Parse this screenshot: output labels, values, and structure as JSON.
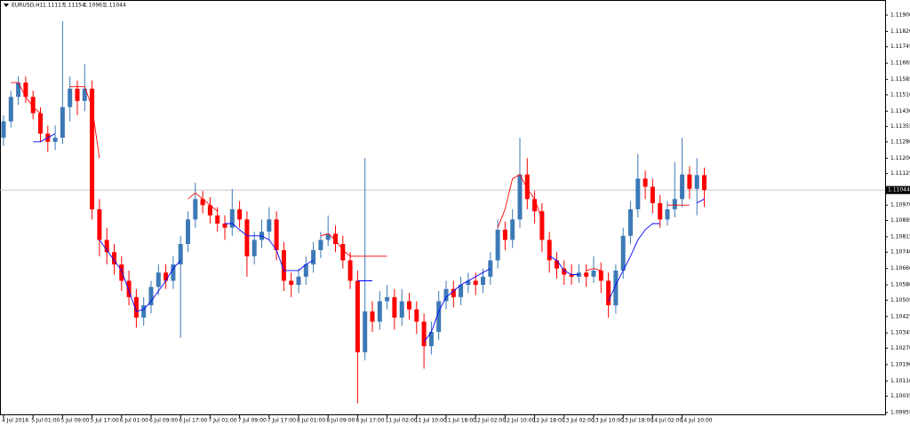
{
  "chart_data": {
    "type": "candlestick",
    "symbol": "EURUSD,H1",
    "categories": [
      "4 Jul 2016",
      null,
      null,
      null,
      "5 Jul 01:00",
      null,
      null,
      null,
      "5 Jul 09:00",
      null,
      null,
      null,
      "5 Jul 17:00",
      null,
      null,
      null,
      "6 Jul 01:00",
      null,
      null,
      null,
      "6 Jul 09:00",
      null,
      null,
      null,
      "6 Jul 17:00",
      null,
      null,
      null,
      "7 Jul 01:00",
      null,
      null,
      null,
      "7 Jul 09:00",
      null,
      null,
      null,
      "7 Jul 17:00",
      null,
      null,
      null,
      "8 Jul 01:00",
      null,
      null,
      null,
      "8 Jul 09:00",
      null,
      null,
      null,
      "8 Jul 17:00",
      null,
      null,
      null,
      "11 Jul 02:00",
      null,
      null,
      null,
      "11 Jul 10:00",
      null,
      null,
      null,
      "11 Jul 18:00",
      null,
      null,
      null,
      "12 Jul 02:00",
      null,
      null,
      null,
      "12 Jul 10:00",
      null,
      null,
      null,
      "12 Jul 18:00",
      null,
      null,
      null,
      "13 Jul 02:00",
      null,
      null,
      null,
      "13 Jul 10:00",
      null,
      null,
      null,
      "13 Jul 18:00",
      null,
      null,
      null,
      "14 Jul 02:00",
      null,
      null,
      null,
      "14 Jul 10:00",
      null,
      null,
      null
    ],
    "ohlc": [
      [
        1.113,
        1.1141,
        1.1126,
        1.1138
      ],
      [
        1.1138,
        1.1153,
        1.1135,
        1.115
      ],
      [
        1.115,
        1.116,
        1.1146,
        1.1157
      ],
      [
        1.1157,
        1.116,
        1.1147,
        1.115
      ],
      [
        1.115,
        1.1153,
        1.1139,
        1.1142
      ],
      [
        1.1142,
        1.1145,
        1.1128,
        1.1132
      ],
      [
        1.1132,
        1.1136,
        1.1123,
        1.1128
      ],
      [
        1.1128,
        1.1136,
        1.1124,
        1.113
      ],
      [
        1.113,
        1.1187,
        1.1127,
        1.1145
      ],
      [
        1.1145,
        1.116,
        1.1138,
        1.1154
      ],
      [
        1.1154,
        1.1158,
        1.1141,
        1.1148
      ],
      [
        1.1148,
        1.1166,
        1.1143,
        1.1154
      ],
      [
        1.1154,
        1.1158,
        1.109,
        1.1095
      ],
      [
        1.1095,
        1.11,
        1.1072,
        1.108
      ],
      [
        1.108,
        1.1086,
        1.1068,
        1.1074
      ],
      [
        1.1074,
        1.1078,
        1.1063,
        1.1068
      ],
      [
        1.1068,
        1.1072,
        1.1055,
        1.106
      ],
      [
        1.106,
        1.1065,
        1.1048,
        1.1052
      ],
      [
        1.1052,
        1.1056,
        1.1037,
        1.1042
      ],
      [
        1.1042,
        1.1052,
        1.1038,
        1.1048
      ],
      [
        1.1048,
        1.106,
        1.1044,
        1.1057
      ],
      [
        1.1057,
        1.1068,
        1.1053,
        1.1064
      ],
      [
        1.1064,
        1.1068,
        1.1056,
        1.106
      ],
      [
        1.106,
        1.1072,
        1.1056,
        1.1068
      ],
      [
        1.1068,
        1.1082,
        1.1032,
        1.1078
      ],
      [
        1.1078,
        1.1094,
        1.1074,
        1.109
      ],
      [
        1.109,
        1.1108,
        1.1086,
        1.11
      ],
      [
        1.11,
        1.1104,
        1.1093,
        1.1097
      ],
      [
        1.1097,
        1.1101,
        1.1088,
        1.1092
      ],
      [
        1.1092,
        1.1096,
        1.1084,
        1.1088
      ],
      [
        1.1088,
        1.1092,
        1.108,
        1.1086
      ],
      [
        1.1086,
        1.1105,
        1.1082,
        1.1095
      ],
      [
        1.1095,
        1.1099,
        1.1086,
        1.109
      ],
      [
        1.109,
        1.1094,
        1.1062,
        1.1072
      ],
      [
        1.1072,
        1.1084,
        1.1068,
        1.108
      ],
      [
        1.108,
        1.109,
        1.1076,
        1.1084
      ],
      [
        1.1084,
        1.1096,
        1.108,
        1.109
      ],
      [
        1.109,
        1.1094,
        1.107,
        1.1075
      ],
      [
        1.1075,
        1.1079,
        1.1055,
        1.106
      ],
      [
        1.106,
        1.1064,
        1.1052,
        1.1058
      ],
      [
        1.1058,
        1.1066,
        1.1054,
        1.1062
      ],
      [
        1.1062,
        1.1072,
        1.1058,
        1.1068
      ],
      [
        1.1068,
        1.1079,
        1.1064,
        1.1075
      ],
      [
        1.1075,
        1.1084,
        1.1071,
        1.108
      ],
      [
        1.108,
        1.1092,
        1.1077,
        1.1083
      ],
      [
        1.1083,
        1.1087,
        1.1074,
        1.1078
      ],
      [
        1.1078,
        1.1082,
        1.1066,
        1.107
      ],
      [
        1.107,
        1.1074,
        1.1056,
        1.106
      ],
      [
        1.106,
        1.1065,
        1.1,
        1.1025
      ],
      [
        1.1025,
        1.112,
        1.1021,
        1.1045
      ],
      [
        1.1045,
        1.105,
        1.1035,
        1.104
      ],
      [
        1.104,
        1.1055,
        1.1036,
        1.105
      ],
      [
        1.105,
        1.1058,
        1.1046,
        1.1052
      ],
      [
        1.1052,
        1.1056,
        1.1036,
        1.1042
      ],
      [
        1.1042,
        1.1056,
        1.1038,
        1.105
      ],
      [
        1.105,
        1.1054,
        1.1041,
        1.1046
      ],
      [
        1.1046,
        1.105,
        1.1034,
        1.104
      ],
      [
        1.104,
        1.1044,
        1.1017,
        1.1028
      ],
      [
        1.1028,
        1.104,
        1.1024,
        1.1035
      ],
      [
        1.1035,
        1.1055,
        1.1031,
        1.105
      ],
      [
        1.105,
        1.106,
        1.1046,
        1.1056
      ],
      [
        1.1056,
        1.106,
        1.1047,
        1.1052
      ],
      [
        1.1052,
        1.1062,
        1.1048,
        1.1058
      ],
      [
        1.1058,
        1.1064,
        1.1054,
        1.106
      ],
      [
        1.106,
        1.1064,
        1.1053,
        1.1058
      ],
      [
        1.1058,
        1.1066,
        1.1054,
        1.1062
      ],
      [
        1.1062,
        1.1074,
        1.1058,
        1.107
      ],
      [
        1.107,
        1.109,
        1.1066,
        1.1085
      ],
      [
        1.1085,
        1.1089,
        1.1075,
        1.108
      ],
      [
        1.108,
        1.1095,
        1.1076,
        1.109
      ],
      [
        1.109,
        1.113,
        1.1086,
        1.1112
      ],
      [
        1.1112,
        1.112,
        1.1095,
        1.11
      ],
      [
        1.11,
        1.1104,
        1.1088,
        1.1094
      ],
      [
        1.1094,
        1.1098,
        1.1074,
        1.108
      ],
      [
        1.108,
        1.1084,
        1.1064,
        1.107
      ],
      [
        1.107,
        1.1074,
        1.1061,
        1.1066
      ],
      [
        1.1066,
        1.107,
        1.1058,
        1.1063
      ],
      [
        1.1063,
        1.1068,
        1.1058,
        1.1062
      ],
      [
        1.1062,
        1.1068,
        1.1059,
        1.1064
      ],
      [
        1.1064,
        1.1068,
        1.1057,
        1.1062
      ],
      [
        1.1062,
        1.1072,
        1.1059,
        1.1065
      ],
      [
        1.1065,
        1.1069,
        1.1054,
        1.106
      ],
      [
        1.106,
        1.1064,
        1.1042,
        1.1048
      ],
      [
        1.1048,
        1.1068,
        1.1044,
        1.1065
      ],
      [
        1.1065,
        1.1086,
        1.1061,
        1.1082
      ],
      [
        1.1082,
        1.1099,
        1.1078,
        1.1095
      ],
      [
        1.1095,
        1.1122,
        1.1091,
        1.111
      ],
      [
        1.111,
        1.1114,
        1.11,
        1.1106
      ],
      [
        1.1106,
        1.111,
        1.1093,
        1.1098
      ],
      [
        1.1098,
        1.1102,
        1.1086,
        1.109
      ],
      [
        1.109,
        1.1099,
        1.1087,
        1.1095
      ],
      [
        1.1095,
        1.1118,
        1.1091,
        1.11
      ],
      [
        1.11,
        1.113,
        1.1096,
        1.1112
      ],
      [
        1.1112,
        1.1116,
        1.11,
        1.1105
      ],
      [
        1.1105,
        1.112,
        1.1092,
        1.11117
      ],
      [
        1.11117,
        1.11154,
        1.10961,
        1.11044
      ]
    ],
    "up_color": "#3d79b6",
    "down_color": "#ff0000",
    "lines": [
      {
        "color": "#ff0000",
        "values": [
          null,
          1.1157,
          1.1157,
          1.115,
          1.1145,
          1.1142,
          null,
          null,
          null,
          1.1155,
          1.1155,
          1.1155,
          1.1145,
          1.112,
          null,
          null,
          null,
          null,
          null,
          null,
          null,
          null,
          null,
          null,
          null,
          1.11,
          1.1103,
          1.11,
          1.1097,
          1.1094,
          null,
          null,
          null,
          null,
          null,
          null,
          null,
          null,
          null,
          null,
          null,
          null,
          null,
          1.1082,
          1.1083,
          1.108,
          1.1075,
          1.1072,
          1.1072,
          1.1072,
          1.1072,
          1.1072,
          1.1072,
          null,
          null,
          null,
          null,
          null,
          null,
          null,
          null,
          null,
          null,
          null,
          null,
          null,
          null,
          1.1086,
          1.1095,
          1.111,
          1.1112,
          1.1105,
          1.11,
          1.109,
          null,
          null,
          null,
          null,
          null,
          1.1065,
          1.1066,
          1.1065,
          null,
          null,
          null,
          null,
          null,
          null,
          null,
          null,
          1.1097,
          1.1097,
          1.1097,
          1.1097,
          null,
          null
        ]
      },
      {
        "color": "#0000ff",
        "values": [
          null,
          null,
          null,
          null,
          1.1128,
          1.1128,
          1.113,
          1.1132,
          null,
          null,
          null,
          null,
          null,
          1.108,
          1.1075,
          1.107,
          1.1065,
          1.1055,
          1.1045,
          1.1046,
          1.105,
          1.1055,
          1.106,
          1.1066,
          1.107,
          null,
          null,
          null,
          null,
          null,
          1.1088,
          1.1088,
          1.1085,
          1.1082,
          1.1082,
          1.1082,
          1.108,
          1.1075,
          1.1065,
          1.1065,
          1.1065,
          1.1068,
          1.107,
          null,
          null,
          null,
          null,
          null,
          1.106,
          1.106,
          1.106,
          null,
          null,
          null,
          null,
          null,
          null,
          1.103,
          1.1035,
          1.1045,
          1.1052,
          1.1055,
          1.1058,
          1.106,
          1.1062,
          1.1064,
          1.1066,
          null,
          null,
          null,
          null,
          null,
          null,
          null,
          1.1072,
          1.107,
          1.1065,
          1.1063,
          1.1063,
          null,
          null,
          null,
          1.105,
          1.1058,
          1.1065,
          1.1072,
          1.108,
          1.1085,
          1.1088,
          1.1088,
          null,
          null,
          null,
          null,
          1.1098,
          1.11
        ]
      }
    ],
    "ylim": [
      1.09942,
      1.11961
    ],
    "yticks": [
      {
        "value": 1.119,
        "label": "1.11900"
      },
      {
        "value": 1.1182,
        "label": "1.11820"
      },
      1.11745,
      1.11665,
      1.11585,
      {
        "value": 1.1151,
        "label": "1.11510"
      },
      {
        "value": 1.1143,
        "label": "1.11430"
      },
      1.11355,
      {
        "value": 1.1128,
        "label": "1.11280"
      },
      {
        "value": 1.112,
        "label": "1.11200"
      },
      1.11125,
      {
        "value": 1.1097,
        "label": "1.10970"
      },
      1.10895,
      1.10815,
      {
        "value": 1.1074,
        "label": "1.10740"
      },
      {
        "value": 1.1066,
        "label": "1.10660"
      },
      {
        "value": 1.1058,
        "label": "1.10580"
      },
      1.10505,
      1.10425,
      1.10345,
      {
        "value": 1.1027,
        "label": "1.10270"
      },
      {
        "value": 1.1019,
        "label": "1.10190"
      },
      {
        "value": 1.1011,
        "label": "1.10110"
      },
      1.10035,
      1.09955
    ]
  }
}
